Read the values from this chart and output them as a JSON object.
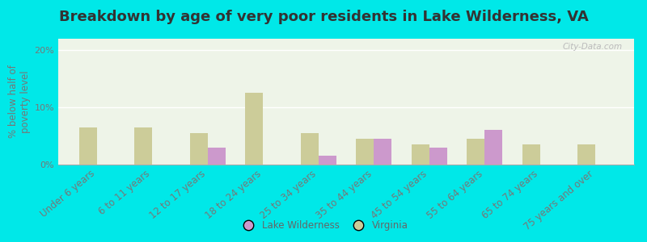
{
  "title": "Breakdown by age of very poor residents in Lake Wilderness, VA",
  "ylabel": "% below half of\npoverty level",
  "categories": [
    "Under 6 years",
    "6 to 11 years",
    "12 to 17 years",
    "18 to 24 years",
    "25 to 34 years",
    "35 to 44 years",
    "45 to 54 years",
    "55 to 64 years",
    "65 to 74 years",
    "75 years and over"
  ],
  "lake_wilderness": [
    0,
    0,
    3.0,
    0,
    1.5,
    4.5,
    3.0,
    6.0,
    0,
    0
  ],
  "virginia": [
    6.5,
    6.5,
    5.5,
    12.5,
    5.5,
    4.5,
    3.5,
    4.5,
    3.5,
    3.5
  ],
  "ylim": [
    0,
    22
  ],
  "yticks": [
    0,
    10,
    20
  ],
  "ytick_labels": [
    "0%",
    "10%",
    "20%"
  ],
  "bar_width": 0.32,
  "color_lake": "#cc99cc",
  "color_virginia": "#cccc99",
  "background_outer": "#00e8e8",
  "background_plot_light": "#eef4e8",
  "background_plot_dark": "#dde8cc",
  "title_fontsize": 13,
  "label_fontsize": 8.5,
  "tick_fontsize": 8,
  "legend_labels": [
    "Lake Wilderness",
    "Virginia"
  ],
  "watermark": "City-Data.com"
}
